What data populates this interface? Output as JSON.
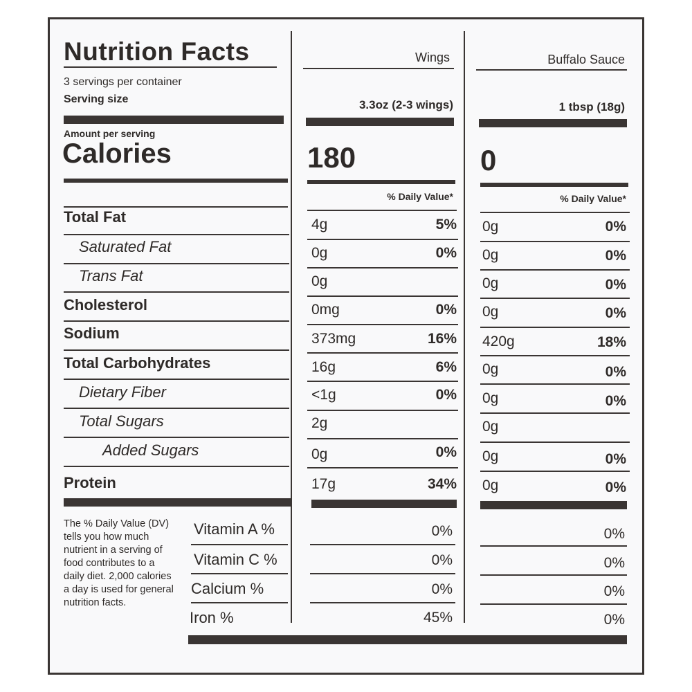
{
  "label": {
    "title": "Nutrition Facts",
    "servings_per_container": "3 servings per container",
    "serving_size_label": "Serving size",
    "amount_per_serving": "Amount per serving",
    "calories_label": "Calories",
    "columns": [
      {
        "name": "Wings",
        "serving_size": "3.3oz (2-3 wings)",
        "calories": "180",
        "dv_header": "% Daily Value*"
      },
      {
        "name": "Buffalo Sauce",
        "serving_size": "1 tbsp (18g)",
        "calories": "0",
        "dv_header": "% Daily Value*"
      }
    ],
    "nutrients": [
      {
        "name": "Total Fat",
        "wings_amount": "4g",
        "wings_dv": "5%",
        "sauce_amount": "0g",
        "sauce_dv": "0%"
      },
      {
        "name": "Saturated Fat",
        "wings_amount": "0g",
        "wings_dv": "0%",
        "sauce_amount": "0g",
        "sauce_dv": "0%"
      },
      {
        "name": "Trans Fat",
        "wings_amount": "0g",
        "wings_dv": "",
        "sauce_amount": "0g",
        "sauce_dv": "0%"
      },
      {
        "name": "Cholesterol",
        "wings_amount": "0mg",
        "wings_dv": "0%",
        "sauce_amount": "0g",
        "sauce_dv": "0%"
      },
      {
        "name": "Sodium",
        "wings_amount": "373mg",
        "wings_dv": "16%",
        "sauce_amount": "420g",
        "sauce_dv": "18%"
      },
      {
        "name": "Total Carbohydrates",
        "wings_amount": "16g",
        "wings_dv": "6%",
        "sauce_amount": "0g",
        "sauce_dv": "0%"
      },
      {
        "name": "Dietary Fiber",
        "wings_amount": "<1g",
        "wings_dv": "0%",
        "sauce_amount": "0g",
        "sauce_dv": "0%"
      },
      {
        "name": "Total Sugars",
        "wings_amount": "2g",
        "wings_dv": "",
        "sauce_amount": "0g",
        "sauce_dv": ""
      },
      {
        "name": "Added Sugars",
        "wings_amount": "0g",
        "wings_dv": "0%",
        "sauce_amount": "0g",
        "sauce_dv": "0%"
      },
      {
        "name": "Protein",
        "wings_amount": "17g",
        "wings_dv": "34%",
        "sauce_amount": "0g",
        "sauce_dv": "0%"
      }
    ],
    "vitamins": [
      {
        "name": "Vitamin A %",
        "wings": "0%",
        "sauce": "0%"
      },
      {
        "name": "Vitamin C %",
        "wings": "0%",
        "sauce": "0%"
      },
      {
        "name": "Calcium %",
        "wings": "0%",
        "sauce": "0%"
      },
      {
        "name": "Iron %",
        "wings": "45%",
        "sauce": "0%"
      }
    ],
    "footnote": "The % Daily Value (DV) tells you how much nutrient in a serving of food contributes to a daily diet. 2,000 calories a day is used for general nutrition facts."
  }
}
